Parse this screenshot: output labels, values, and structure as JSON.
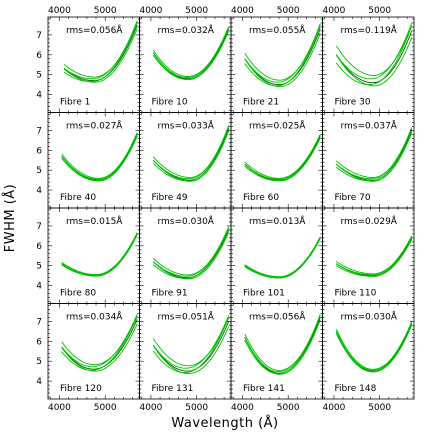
{
  "chart_data": {
    "type": "line",
    "xlabel": "Wavelength (Å)",
    "ylabel": "FWHM (Å)",
    "xlim": [
      3750,
      5750
    ],
    "ylim": [
      3.1,
      7.9
    ],
    "x_ticks": [
      4000,
      5000
    ],
    "x_tick_labels": [
      "4000",
      "5000"
    ],
    "y_ticks": [
      4,
      5,
      6,
      7
    ],
    "y_tick_labels": [
      "4",
      "5",
      "6",
      "7"
    ],
    "grid": false,
    "layout": "4x4 small multiples",
    "panels": [
      {
        "fibre": "Fibre 1",
        "rms": "rms=0.056Å",
        "x0": 4100,
        "y0": 5.3,
        "xm": 4750,
        "ym": 4.7,
        "x1": 5700,
        "y1": 7.5,
        "spread": 0.2
      },
      {
        "fibre": "Fibre 10",
        "rms": "rms=0.032Å",
        "x0": 4050,
        "y0": 6.1,
        "xm": 4800,
        "ym": 4.8,
        "x1": 5700,
        "y1": 7.3,
        "spread": 0.12
      },
      {
        "fibre": "Fibre 21",
        "rms": "rms=0.055Å",
        "x0": 4050,
        "y0": 5.8,
        "xm": 4800,
        "ym": 4.5,
        "x1": 5700,
        "y1": 7.3,
        "spread": 0.25
      },
      {
        "fibre": "Fibre 30",
        "rms": "rms=0.119Å",
        "x0": 4050,
        "y0": 6.0,
        "xm": 4850,
        "ym": 4.6,
        "x1": 5700,
        "y1": 7.2,
        "spread": 0.4
      },
      {
        "fibre": "Fibre 40",
        "rms": "rms=0.027Å",
        "x0": 4050,
        "y0": 5.7,
        "xm": 4850,
        "ym": 4.5,
        "x1": 5700,
        "y1": 6.8,
        "spread": 0.1
      },
      {
        "fibre": "Fibre 49",
        "rms": "rms=0.033Å",
        "x0": 4050,
        "y0": 5.5,
        "xm": 4850,
        "ym": 4.5,
        "x1": 5700,
        "y1": 7.1,
        "spread": 0.15
      },
      {
        "fibre": "Fibre 60",
        "rms": "rms=0.025Å",
        "x0": 4050,
        "y0": 5.3,
        "xm": 4800,
        "ym": 4.5,
        "x1": 5700,
        "y1": 6.7,
        "spread": 0.1
      },
      {
        "fibre": "Fibre 70",
        "rms": "rms=0.037Å",
        "x0": 4050,
        "y0": 5.3,
        "xm": 4850,
        "ym": 4.5,
        "x1": 5700,
        "y1": 7.0,
        "spread": 0.15
      },
      {
        "fibre": "Fibre 80",
        "rms": "rms=0.015Å",
        "x0": 4050,
        "y0": 5.1,
        "xm": 4800,
        "ym": 4.5,
        "x1": 5700,
        "y1": 6.6,
        "spread": 0.06
      },
      {
        "fibre": "Fibre 91",
        "rms": "rms=0.030Å",
        "x0": 4050,
        "y0": 5.2,
        "xm": 4800,
        "ym": 4.4,
        "x1": 5700,
        "y1": 6.8,
        "spread": 0.15
      },
      {
        "fibre": "Fibre 101",
        "rms": "rms=0.013Å",
        "x0": 4050,
        "y0": 5.0,
        "xm": 4800,
        "ym": 4.4,
        "x1": 5700,
        "y1": 6.4,
        "spread": 0.05
      },
      {
        "fibre": "Fibre 110",
        "rms": "rms=0.029Å",
        "x0": 4050,
        "y0": 5.1,
        "xm": 4850,
        "ym": 4.5,
        "x1": 5700,
        "y1": 6.4,
        "spread": 0.1
      },
      {
        "fibre": "Fibre 120",
        "rms": "rms=0.034Å",
        "x0": 4050,
        "y0": 5.7,
        "xm": 4750,
        "ym": 4.6,
        "x1": 5700,
        "y1": 7.1,
        "spread": 0.25
      },
      {
        "fibre": "Fibre 131",
        "rms": "rms=0.051Å",
        "x0": 4050,
        "y0": 5.8,
        "xm": 4800,
        "ym": 4.5,
        "x1": 5700,
        "y1": 7.0,
        "spread": 0.3
      },
      {
        "fibre": "Fibre 141",
        "rms": "rms=0.056Å",
        "x0": 4050,
        "y0": 6.2,
        "xm": 4800,
        "ym": 4.4,
        "x1": 5700,
        "y1": 7.2,
        "spread": 0.15
      },
      {
        "fibre": "Fibre 148",
        "rms": "rms=0.030Å",
        "x0": 4050,
        "y0": 6.5,
        "xm": 4850,
        "ym": 4.5,
        "x1": 5700,
        "y1": 6.9,
        "spread": 0.1
      }
    ]
  }
}
